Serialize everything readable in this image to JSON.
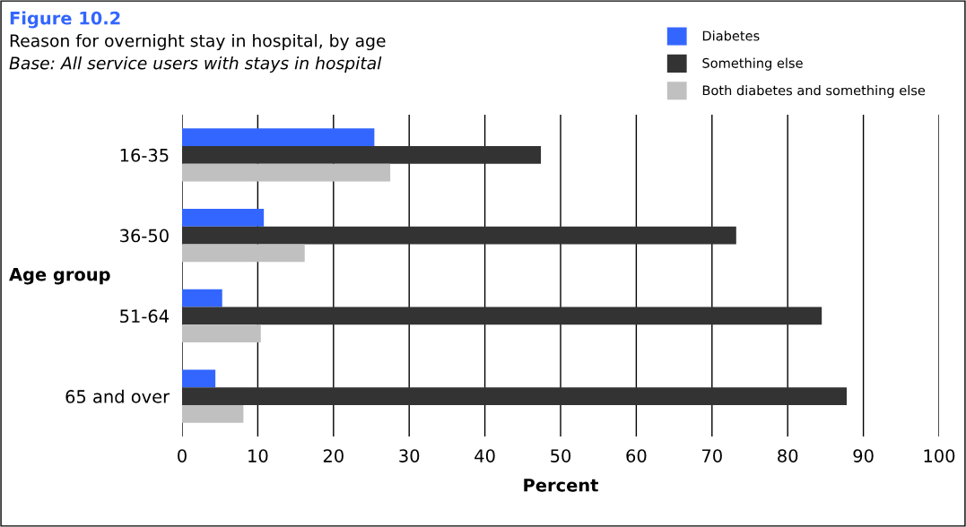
{
  "chart_data": {
    "type": "bar",
    "orientation": "horizontal",
    "title": "Figure 10.2",
    "subtitle": "Reason for overnight stay in hospital, by age",
    "annotations": [
      "Base: All service users with stays in hospital"
    ],
    "xlabel": "Percent",
    "ylabel": "Age group",
    "categories": [
      "16-35",
      "36-50",
      "51-64",
      "65 and over"
    ],
    "series": [
      {
        "name": "Diabetes",
        "color": "#3366ff",
        "values": [
          25.4,
          10.8,
          5.3,
          4.4
        ]
      },
      {
        "name": "Something else",
        "color": "#333333",
        "values": [
          47.4,
          73.2,
          84.5,
          87.8
        ]
      },
      {
        "name": "Both diabetes and something else",
        "color": "#c0c0c0",
        "values": [
          27.5,
          16.2,
          10.4,
          8.1
        ]
      }
    ],
    "xlim": [
      0,
      100
    ],
    "xticks": [
      0,
      10,
      20,
      30,
      40,
      50,
      60,
      70,
      80,
      90,
      100
    ],
    "grid": "x",
    "legend": "top right"
  }
}
